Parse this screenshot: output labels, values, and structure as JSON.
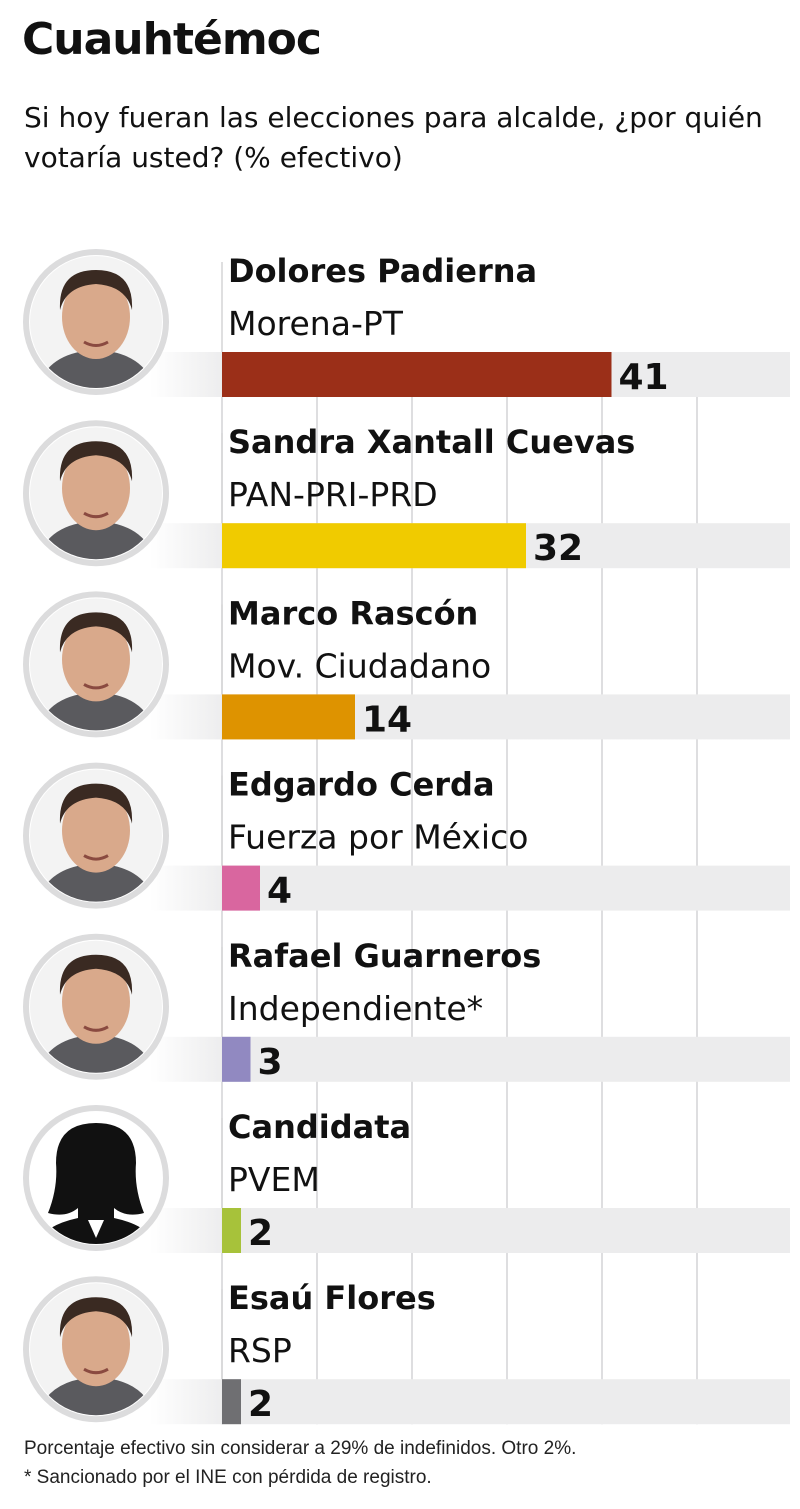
{
  "header": {
    "title": "Cuauhtémoc",
    "subtitle": "Si hoy fueran las elecciones para alcalde, ¿por quién votaría usted? (% efectivo)"
  },
  "chart_data": {
    "type": "bar",
    "orientation": "horizontal",
    "title": "Cuauhtémoc",
    "subtitle": "Si hoy fueran las elecciones para alcalde, ¿por quién votaría usted? (% efectivo)",
    "xlim": [
      0,
      60
    ],
    "grid": true,
    "categories": [
      "Dolores Padierna",
      "Sandra Xantall Cuevas",
      "Marco Rascón",
      "Edgardo Cerda",
      "Rafael Guarneros",
      "Candidata",
      "Esaú Flores"
    ],
    "parties": [
      "Morena-PT",
      "PAN-PRI-PRD",
      "Mov. Ciudadano",
      "Fuerza por México",
      "Independiente*",
      "PVEM",
      "RSP"
    ],
    "values": [
      41,
      32,
      14,
      4,
      3,
      2,
      2
    ],
    "colors": [
      "#9b2f18",
      "#f0cb00",
      "#de9300",
      "#d9669f",
      "#9189c1",
      "#a7c23a",
      "#6f6f72"
    ],
    "avatars": [
      "photo",
      "photo",
      "photo",
      "photo",
      "photo",
      "silhouette-icon",
      "photo"
    ]
  },
  "footer": {
    "note1": "Porcentaje efectivo sin considerar a 29% de indefinidos. Otro 2%.",
    "note2": "* Sancionado por el INE con pérdida de registro."
  }
}
